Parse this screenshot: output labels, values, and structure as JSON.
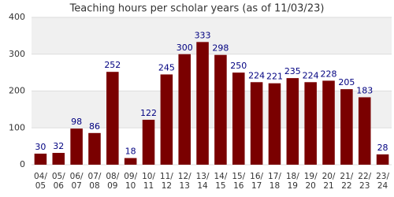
{
  "chart_data": {
    "type": "bar",
    "title": "Teaching hours per scholar years (as of 11/03/23)",
    "categories": [
      "04/05",
      "05/06",
      "06/07",
      "07/08",
      "08/09",
      "09/10",
      "10/11",
      "11/12",
      "12/13",
      "13/14",
      "14/15",
      "15/16",
      "16/17",
      "17/18",
      "18/19",
      "19/20",
      "20/21",
      "21/22",
      "22/23",
      "23/24"
    ],
    "values": [
      30,
      32,
      98,
      86,
      252,
      18,
      122,
      245,
      300,
      333,
      298,
      250,
      224,
      221,
      235,
      224,
      228,
      205,
      183,
      28
    ],
    "color": "#7a0000",
    "label_color": "#000080",
    "ylim": [
      0,
      400
    ],
    "yticks": [
      0,
      100,
      200,
      300,
      400
    ],
    "grid": true
  }
}
